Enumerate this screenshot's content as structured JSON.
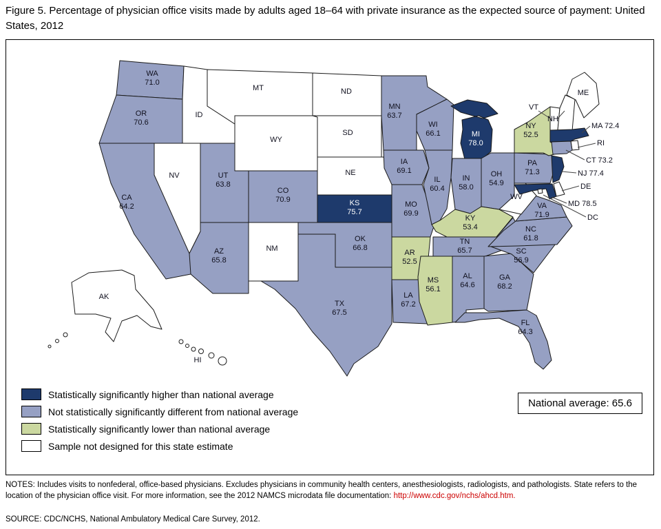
{
  "figure": {
    "title": "Figure 5. Percentage of physician office visits made by adults aged 18–64 with private insurance as the expected source of payment: United States, 2012"
  },
  "legend": {
    "items": [
      {
        "key": "higher",
        "label": "Statistically significantly higher than national average",
        "color": "#1e3a6c"
      },
      {
        "key": "not_different",
        "label": "Not statistically significantly different from national average",
        "color": "#96a0c3"
      },
      {
        "key": "lower",
        "label": "Statistically significantly lower than national average",
        "color": "#cbd8a0"
      },
      {
        "key": "not_designed",
        "label": "Sample not designed for this state estimate",
        "color": "#ffffff"
      }
    ]
  },
  "national_average": {
    "label": "National average: 65.6",
    "value": 65.6
  },
  "notes": {
    "prefix": "NOTES: Includes visits to nonfederal, office-based physicians. Excludes physicians in community health centers, anesthesiologists, radiologists, and pathologists. State refers to the location of the physician office visit. For more information, see the 2012 NAMCS microdata file documentation: ",
    "link": "http://www.cdc.gov/nchs/ahcd.htm."
  },
  "source": "SOURCE: CDC/NCHS, National Ambulatory Medical Care Survey, 2012.",
  "chart_data": {
    "type": "choropleth_map",
    "region": "United States",
    "year": 2012,
    "metric": "Percentage of physician office visits made by adults aged 18–64 with private insurance as the expected source of payment",
    "national_average": 65.6,
    "category_labels": {
      "higher": "Statistically significantly higher than national average",
      "not_different": "Not statistically significantly different from national average",
      "lower": "Statistically significantly lower than national average",
      "not_designed": "Sample not designed for this state estimate"
    },
    "states": [
      {
        "abbr": "WA",
        "value": 71.0,
        "category": "not_different"
      },
      {
        "abbr": "OR",
        "value": 70.6,
        "category": "not_different"
      },
      {
        "abbr": "CA",
        "value": 64.2,
        "category": "not_different"
      },
      {
        "abbr": "NV",
        "value": null,
        "category": "not_designed"
      },
      {
        "abbr": "ID",
        "value": null,
        "category": "not_designed"
      },
      {
        "abbr": "MT",
        "value": null,
        "category": "not_designed"
      },
      {
        "abbr": "WY",
        "value": null,
        "category": "not_designed"
      },
      {
        "abbr": "UT",
        "value": 63.8,
        "category": "not_different"
      },
      {
        "abbr": "CO",
        "value": 70.9,
        "category": "not_different"
      },
      {
        "abbr": "AZ",
        "value": 65.8,
        "category": "not_different"
      },
      {
        "abbr": "NM",
        "value": null,
        "category": "not_designed"
      },
      {
        "abbr": "ND",
        "value": null,
        "category": "not_designed"
      },
      {
        "abbr": "SD",
        "value": null,
        "category": "not_designed"
      },
      {
        "abbr": "NE",
        "value": null,
        "category": "not_designed"
      },
      {
        "abbr": "KS",
        "value": 75.7,
        "category": "higher"
      },
      {
        "abbr": "OK",
        "value": 66.8,
        "category": "not_different"
      },
      {
        "abbr": "TX",
        "value": 67.5,
        "category": "not_different"
      },
      {
        "abbr": "MN",
        "value": 63.7,
        "category": "not_different"
      },
      {
        "abbr": "IA",
        "value": 69.1,
        "category": "not_different"
      },
      {
        "abbr": "MO",
        "value": 69.9,
        "category": "not_different"
      },
      {
        "abbr": "AR",
        "value": 52.5,
        "category": "lower"
      },
      {
        "abbr": "LA",
        "value": 67.2,
        "category": "not_different"
      },
      {
        "abbr": "WI",
        "value": 66.1,
        "category": "not_different"
      },
      {
        "abbr": "MI",
        "value": 78.0,
        "category": "higher"
      },
      {
        "abbr": "IL",
        "value": 60.4,
        "category": "not_different"
      },
      {
        "abbr": "IN",
        "value": 58.0,
        "category": "not_different"
      },
      {
        "abbr": "OH",
        "value": 54.9,
        "category": "not_different"
      },
      {
        "abbr": "KY",
        "value": 53.4,
        "category": "lower"
      },
      {
        "abbr": "TN",
        "value": 65.7,
        "category": "not_different"
      },
      {
        "abbr": "MS",
        "value": 56.1,
        "category": "lower"
      },
      {
        "abbr": "AL",
        "value": 64.6,
        "category": "not_different"
      },
      {
        "abbr": "GA",
        "value": 68.2,
        "category": "not_different"
      },
      {
        "abbr": "FL",
        "value": 64.3,
        "category": "not_different"
      },
      {
        "abbr": "SC",
        "value": 56.9,
        "category": "not_different"
      },
      {
        "abbr": "NC",
        "value": 61.8,
        "category": "not_different"
      },
      {
        "abbr": "VA",
        "value": 71.9,
        "category": "not_different"
      },
      {
        "abbr": "WV",
        "value": null,
        "category": "not_designed"
      },
      {
        "abbr": "PA",
        "value": 71.3,
        "category": "not_different"
      },
      {
        "abbr": "NY",
        "value": 52.5,
        "category": "lower"
      },
      {
        "abbr": "NJ",
        "value": 77.4,
        "category": "higher"
      },
      {
        "abbr": "DE",
        "value": null,
        "category": "not_designed"
      },
      {
        "abbr": "MD",
        "value": 78.5,
        "category": "higher"
      },
      {
        "abbr": "DC",
        "value": null,
        "category": "not_designed"
      },
      {
        "abbr": "CT",
        "value": 73.2,
        "category": "not_different"
      },
      {
        "abbr": "RI",
        "value": null,
        "category": "not_designed"
      },
      {
        "abbr": "MA",
        "value": 72.4,
        "category": "higher"
      },
      {
        "abbr": "VT",
        "value": null,
        "category": "not_designed"
      },
      {
        "abbr": "NH",
        "value": null,
        "category": "not_designed"
      },
      {
        "abbr": "ME",
        "value": null,
        "category": "not_designed"
      },
      {
        "abbr": "AK",
        "value": null,
        "category": "not_designed"
      },
      {
        "abbr": "HI",
        "value": null,
        "category": "not_designed"
      }
    ]
  }
}
